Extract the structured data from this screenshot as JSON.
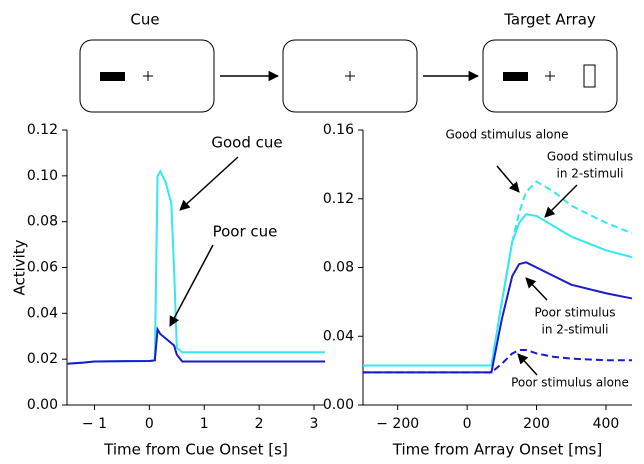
{
  "diagram": {
    "labels": [
      "Cue",
      "Target Array"
    ]
  },
  "chart_data": [
    {
      "type": "line",
      "ylabel": "Activity",
      "xlabel": "Time from Cue Onset [s]",
      "x": [
        -1.5,
        -1.2,
        -1,
        0,
        0.1,
        0.15,
        0.2,
        0.3,
        0.4,
        0.45,
        0.5,
        0.6,
        1,
        2,
        3,
        3.2
      ],
      "series": [
        {
          "color": "#33e8ee",
          "dashed": false,
          "values": [
            0.018,
            0.0185,
            0.019,
            0.0192,
            0.0195,
            0.1,
            0.102,
            0.097,
            0.088,
            0.06,
            0.025,
            0.023,
            0.023,
            0.023,
            0.023,
            0.023
          ]
        },
        {
          "color": "#1a1ad0",
          "dashed": false,
          "values": [
            0.018,
            0.0185,
            0.019,
            0.0192,
            0.0195,
            0.033,
            0.031,
            0.029,
            0.027,
            0.026,
            0.022,
            0.019,
            0.019,
            0.019,
            0.019,
            0.019
          ]
        }
      ],
      "xlim": [
        -1.5,
        3.2
      ],
      "ylim": [
        0,
        0.12
      ],
      "xticks": [
        {
          "value": -1,
          "label": "− 1"
        },
        0,
        1,
        2,
        3
      ],
      "yticks": [
        {
          "value": 0,
          "label": "0.00"
        },
        0.02,
        0.04,
        0.06,
        0.08,
        {
          "value": 0.1,
          "label": "0.10"
        },
        0.12
      ],
      "annotations": [
        "Good cue",
        "Poor cue"
      ]
    },
    {
      "type": "line",
      "xlabel": "Time from Array Onset [ms]",
      "x": [
        -300,
        -200,
        0,
        70,
        100,
        130,
        150,
        170,
        200,
        250,
        300,
        400,
        475
      ],
      "series": [
        {
          "color": "#33e8ee",
          "dashed": true,
          "values": [
            0.023,
            0.023,
            0.023,
            0.023,
            0.06,
            0.095,
            0.112,
            0.124,
            0.13,
            0.124,
            0.116,
            0.106,
            0.1
          ]
        },
        {
          "color": "#33e8ee",
          "dashed": false,
          "values": [
            0.023,
            0.023,
            0.023,
            0.023,
            0.06,
            0.095,
            0.106,
            0.111,
            0.11,
            0.104,
            0.098,
            0.09,
            0.086
          ]
        },
        {
          "color": "#1a1ad0",
          "dashed": false,
          "values": [
            0.019,
            0.019,
            0.019,
            0.019,
            0.05,
            0.075,
            0.082,
            0.083,
            0.08,
            0.075,
            0.07,
            0.065,
            0.062
          ]
        },
        {
          "color": "#1a1ad0",
          "dashed": true,
          "values": [
            0.019,
            0.019,
            0.019,
            0.019,
            0.024,
            0.03,
            0.032,
            0.032,
            0.03,
            0.028,
            0.027,
            0.026,
            0.026
          ]
        }
      ],
      "xlim": [
        -300,
        475
      ],
      "ylim": [
        0,
        0.16
      ],
      "xticks": [
        {
          "value": -200,
          "label": "− 200"
        },
        0,
        200,
        400
      ],
      "yticks": [
        {
          "value": 0,
          "label": "0.00"
        },
        0.04,
        0.08,
        0.12,
        0.16
      ],
      "annotations": [
        "Good stimulus alone",
        "Good stimulus",
        "in 2-stimuli",
        "Poor stimulus",
        "in 2-stimuli",
        "Poor stimulus alone"
      ]
    }
  ]
}
